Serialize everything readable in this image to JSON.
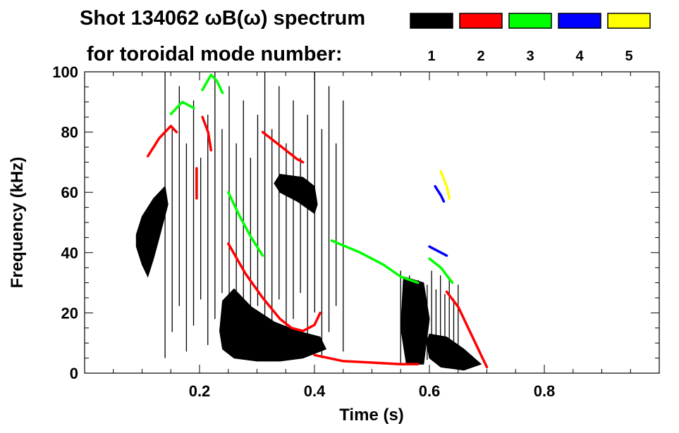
{
  "chart_data": {
    "type": "heatmap",
    "title_line1": "Shot 134062 ωB(ω) spectrum",
    "title_line2": "for toroidal mode number:",
    "xlabel": "Time (s)",
    "ylabel": "Frequency (kHz)",
    "xlim": [
      0.0,
      1.0
    ],
    "ylim": [
      0,
      100
    ],
    "xticks": [
      0.2,
      0.4,
      0.6,
      0.8
    ],
    "xtick_labels": [
      "0.2",
      "0.4",
      "0.6",
      "0.8"
    ],
    "yticks": [
      0,
      20,
      40,
      60,
      80,
      100
    ],
    "ytick_labels": [
      "0",
      "20",
      "40",
      "60",
      "80",
      "100"
    ],
    "legend": [
      {
        "n": "1",
        "color": "#000000"
      },
      {
        "n": "2",
        "color": "#ff0000"
      },
      {
        "n": "3",
        "color": "#00ff00"
      },
      {
        "n": "4",
        "color": "#0000ff"
      },
      {
        "n": "5",
        "color": "#ffff00"
      }
    ],
    "features": [
      {
        "mode": 1,
        "kind": "blob",
        "points": [
          [
            0.09,
            46
          ],
          [
            0.1,
            52
          ],
          [
            0.12,
            58
          ],
          [
            0.14,
            62
          ],
          [
            0.145,
            56
          ],
          [
            0.13,
            45
          ],
          [
            0.12,
            38
          ],
          [
            0.11,
            32
          ],
          [
            0.1,
            36
          ],
          [
            0.09,
            42
          ]
        ]
      },
      {
        "mode": 1,
        "kind": "blob",
        "points": [
          [
            0.24,
            24
          ],
          [
            0.26,
            28
          ],
          [
            0.29,
            22
          ],
          [
            0.33,
            17
          ],
          [
            0.37,
            14
          ],
          [
            0.41,
            12
          ],
          [
            0.42,
            8
          ],
          [
            0.38,
            5
          ],
          [
            0.34,
            4
          ],
          [
            0.3,
            4
          ],
          [
            0.26,
            5
          ],
          [
            0.24,
            8
          ],
          [
            0.235,
            14
          ]
        ]
      },
      {
        "mode": 1,
        "kind": "blob",
        "points": [
          [
            0.34,
            66
          ],
          [
            0.38,
            65
          ],
          [
            0.4,
            62
          ],
          [
            0.405,
            56
          ],
          [
            0.4,
            53
          ],
          [
            0.37,
            57
          ],
          [
            0.34,
            60
          ],
          [
            0.33,
            63
          ]
        ]
      },
      {
        "mode": 1,
        "kind": "blob",
        "points": [
          [
            0.6,
            13
          ],
          [
            0.63,
            12
          ],
          [
            0.66,
            8
          ],
          [
            0.69,
            3
          ],
          [
            0.66,
            1
          ],
          [
            0.62,
            2
          ],
          [
            0.6,
            5
          ],
          [
            0.595,
            10
          ]
        ]
      },
      {
        "mode": 1,
        "kind": "blob",
        "points": [
          [
            0.555,
            32
          ],
          [
            0.59,
            30
          ],
          [
            0.6,
            18
          ],
          [
            0.59,
            3
          ],
          [
            0.56,
            3
          ],
          [
            0.55,
            15
          ]
        ]
      },
      {
        "mode": 1,
        "kind": "streaks",
        "from": 0.14,
        "to": 0.45,
        "count": 26,
        "ymin": 5,
        "ymax": 100
      },
      {
        "mode": 1,
        "kind": "streaks",
        "from": 0.55,
        "to": 0.65,
        "count": 14,
        "ymin": 3,
        "ymax": 34
      },
      {
        "mode": 2,
        "kind": "line",
        "points": [
          [
            0.25,
            43
          ],
          [
            0.28,
            33
          ],
          [
            0.31,
            25
          ],
          [
            0.34,
            18
          ],
          [
            0.36,
            15
          ],
          [
            0.38,
            14
          ],
          [
            0.4,
            16
          ],
          [
            0.41,
            20
          ]
        ]
      },
      {
        "mode": 2,
        "kind": "line",
        "points": [
          [
            0.31,
            80
          ],
          [
            0.33,
            77
          ],
          [
            0.35,
            74
          ],
          [
            0.37,
            71
          ],
          [
            0.38,
            70
          ]
        ]
      },
      {
        "mode": 2,
        "kind": "line",
        "points": [
          [
            0.4,
            6
          ],
          [
            0.45,
            4
          ],
          [
            0.5,
            3.5
          ],
          [
            0.55,
            3
          ],
          [
            0.58,
            3
          ]
        ]
      },
      {
        "mode": 2,
        "kind": "line",
        "points": [
          [
            0.63,
            27
          ],
          [
            0.65,
            22
          ],
          [
            0.67,
            14
          ],
          [
            0.69,
            6
          ],
          [
            0.7,
            2
          ]
        ]
      },
      {
        "mode": 2,
        "kind": "line",
        "points": [
          [
            0.11,
            72
          ],
          [
            0.13,
            78
          ],
          [
            0.15,
            82
          ],
          [
            0.16,
            80
          ]
        ]
      },
      {
        "mode": 2,
        "kind": "line",
        "points": [
          [
            0.205,
            85
          ],
          [
            0.215,
            80
          ],
          [
            0.22,
            74
          ]
        ]
      },
      {
        "mode": 2,
        "kind": "line",
        "points": [
          [
            0.195,
            68
          ],
          [
            0.195,
            58
          ]
        ]
      },
      {
        "mode": 3,
        "kind": "line",
        "points": [
          [
            0.205,
            94
          ],
          [
            0.22,
            99
          ],
          [
            0.23,
            97
          ],
          [
            0.24,
            93
          ]
        ]
      },
      {
        "mode": 3,
        "kind": "line",
        "points": [
          [
            0.25,
            60
          ],
          [
            0.27,
            52
          ],
          [
            0.29,
            45
          ],
          [
            0.31,
            39
          ]
        ]
      },
      {
        "mode": 3,
        "kind": "line",
        "points": [
          [
            0.43,
            44
          ],
          [
            0.48,
            40
          ],
          [
            0.52,
            36
          ],
          [
            0.55,
            32
          ],
          [
            0.58,
            30
          ]
        ]
      },
      {
        "mode": 3,
        "kind": "line",
        "points": [
          [
            0.6,
            38
          ],
          [
            0.62,
            35
          ],
          [
            0.64,
            30
          ]
        ]
      },
      {
        "mode": 3,
        "kind": "line",
        "points": [
          [
            0.15,
            86
          ],
          [
            0.17,
            90
          ],
          [
            0.19,
            88
          ]
        ]
      },
      {
        "mode": 4,
        "kind": "line",
        "points": [
          [
            0.61,
            62
          ],
          [
            0.62,
            59
          ],
          [
            0.625,
            57
          ]
        ]
      },
      {
        "mode": 4,
        "kind": "line",
        "points": [
          [
            0.6,
            42
          ],
          [
            0.63,
            39
          ]
        ]
      },
      {
        "mode": 5,
        "kind": "line",
        "points": [
          [
            0.62,
            67
          ],
          [
            0.63,
            62
          ],
          [
            0.635,
            58
          ]
        ]
      }
    ]
  }
}
